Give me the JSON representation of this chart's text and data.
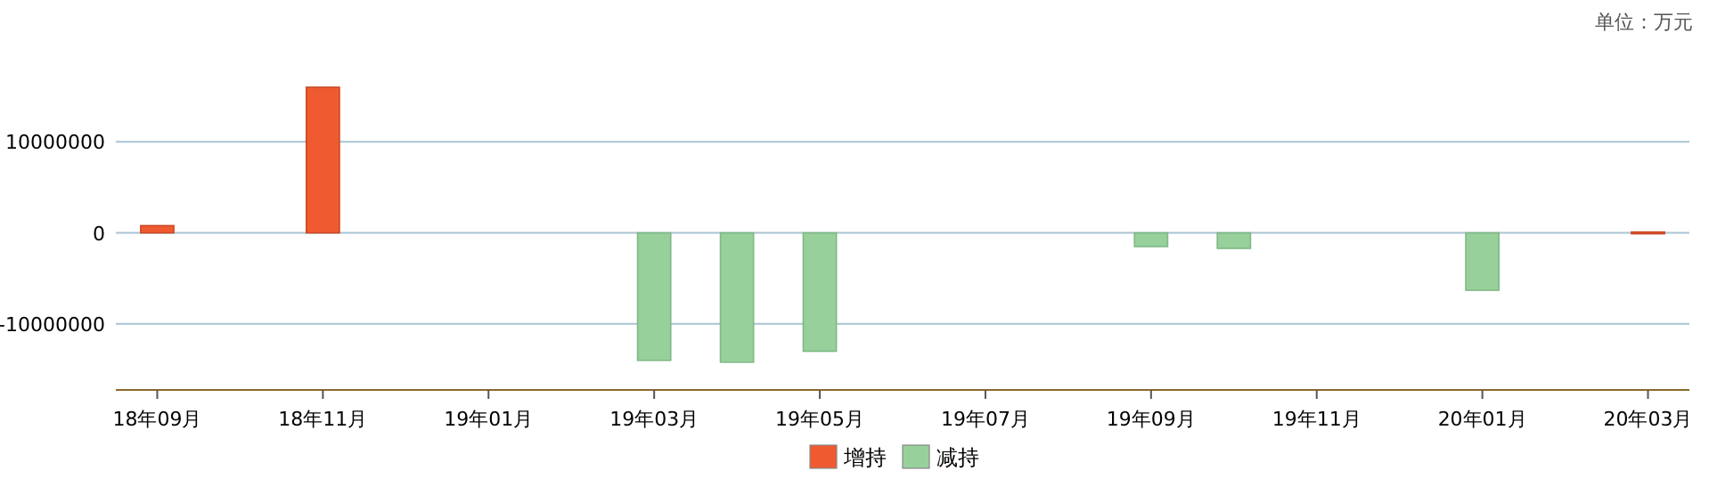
{
  "chart_data": {
    "type": "bar",
    "annotations": [
      "单位：万元"
    ],
    "categories": [
      "18年09月",
      null,
      "18年11月",
      null,
      "19年01月",
      null,
      "19年03月",
      null,
      "19年05月",
      null,
      "19年07月",
      null,
      "19年09月",
      null,
      "19年11月",
      null,
      "20年01月",
      null,
      "20年03月"
    ],
    "series": [
      {
        "name": "增持",
        "color": "#f05a30",
        "values": [
          800000,
          null,
          16000000,
          null,
          null,
          null,
          null,
          null,
          null,
          null,
          null,
          null,
          null,
          null,
          null,
          null,
          null,
          null,
          100000
        ]
      },
      {
        "name": "减持",
        "color": "#98d09c",
        "values": [
          null,
          null,
          null,
          null,
          null,
          null,
          -14000000,
          -14200000,
          -13000000,
          null,
          null,
          null,
          -1500000,
          -1700000,
          null,
          null,
          -6300000,
          null,
          null
        ]
      }
    ],
    "ylim": [
      -17250000,
      16000000
    ],
    "yticks": [
      -10000000,
      0,
      10000000
    ],
    "grid": "y",
    "legend": "bottom"
  }
}
